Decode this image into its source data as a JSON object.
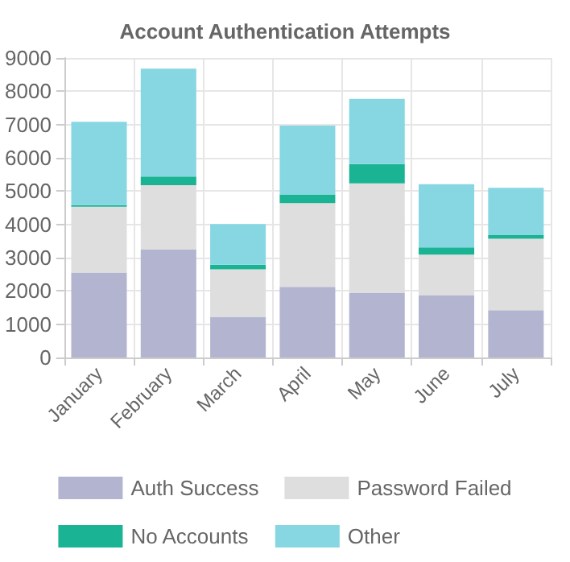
{
  "chart_data": {
    "type": "bar",
    "title": "Account Authentication Attempts",
    "categories": [
      "January",
      "February",
      "March",
      "April",
      "May",
      "June",
      "July"
    ],
    "stacked": true,
    "series": [
      {
        "name": "Auth Success",
        "color": "#b3b5d0",
        "values": [
          2550,
          3240,
          1220,
          2120,
          1950,
          1860,
          1420
        ]
      },
      {
        "name": "Password Failed",
        "color": "#dedede",
        "values": [
          1980,
          1940,
          1430,
          2520,
          3280,
          1230,
          2150
        ]
      },
      {
        "name": "No Accounts",
        "color": "#1ab394",
        "values": [
          50,
          260,
          140,
          260,
          580,
          220,
          110
        ]
      },
      {
        "name": "Other",
        "color": "#87d7e3",
        "values": [
          2500,
          3240,
          1220,
          2070,
          1960,
          1900,
          1420
        ]
      }
    ],
    "ylim": [
      0,
      9000
    ],
    "yticks": [
      0,
      1000,
      2000,
      3000,
      4000,
      5000,
      6000,
      7000,
      8000,
      9000
    ],
    "grid": true,
    "legend": "bottom"
  }
}
